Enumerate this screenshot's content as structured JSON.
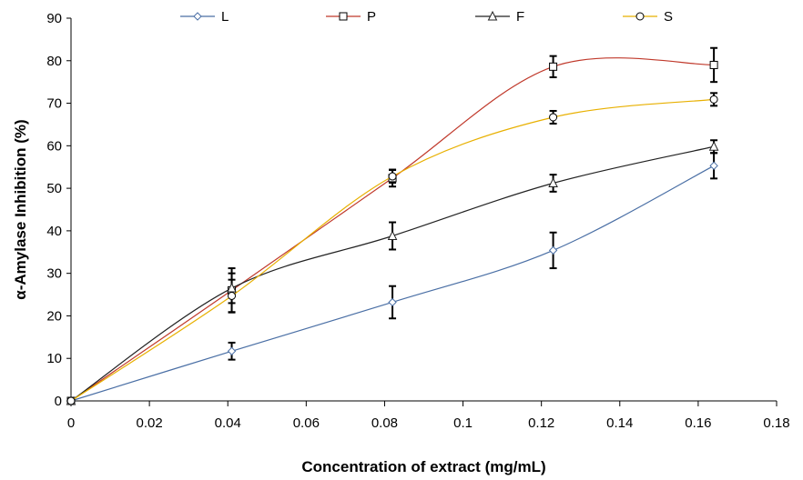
{
  "chart_data": {
    "type": "line",
    "xlabel": "Concentration of extract (mg/mL)",
    "ylabel": "α-Amylase Inhibition (%)",
    "xlim": [
      0,
      0.18
    ],
    "ylim": [
      0,
      90
    ],
    "xticks": [
      0,
      0.02,
      0.04,
      0.06,
      0.08,
      0.1,
      0.12,
      0.14,
      0.16,
      0.18
    ],
    "xtick_labels": [
      "0",
      "0.02",
      "0.04",
      "0.06",
      "0.08",
      "0.1",
      "0.12",
      "0.14",
      "0.16",
      "0.18"
    ],
    "yticks": [
      0,
      10,
      20,
      30,
      40,
      50,
      60,
      70,
      80,
      90
    ],
    "ytick_labels": [
      "0",
      "10",
      "20",
      "30",
      "40",
      "50",
      "60",
      "70",
      "80",
      "90"
    ],
    "grid": false,
    "legend_position": "top",
    "x": [
      0,
      0.041,
      0.082,
      0.123,
      0.164
    ],
    "series": [
      {
        "name": "L",
        "color": "#4a6fa5",
        "marker": "diamond",
        "values": [
          0,
          11.7,
          23.2,
          35.4,
          55.3
        ],
        "errors": [
          0,
          2.0,
          3.8,
          4.2,
          3.0
        ]
      },
      {
        "name": "P",
        "color": "#c0392b",
        "marker": "square",
        "values": [
          0,
          26.0,
          52.4,
          78.6,
          79.0
        ],
        "errors": [
          0,
          5.2,
          2.0,
          2.5,
          4.0
        ]
      },
      {
        "name": "F",
        "color": "#222222",
        "marker": "triangle",
        "values": [
          0,
          26.5,
          38.8,
          51.2,
          59.8
        ],
        "errors": [
          0,
          3.5,
          3.2,
          2.0,
          1.5
        ]
      },
      {
        "name": "S",
        "color": "#e8b000",
        "marker": "circle",
        "values": [
          0,
          24.7,
          52.8,
          66.7,
          70.9
        ],
        "errors": [
          0,
          3.8,
          1.5,
          1.5,
          1.5
        ]
      }
    ]
  }
}
